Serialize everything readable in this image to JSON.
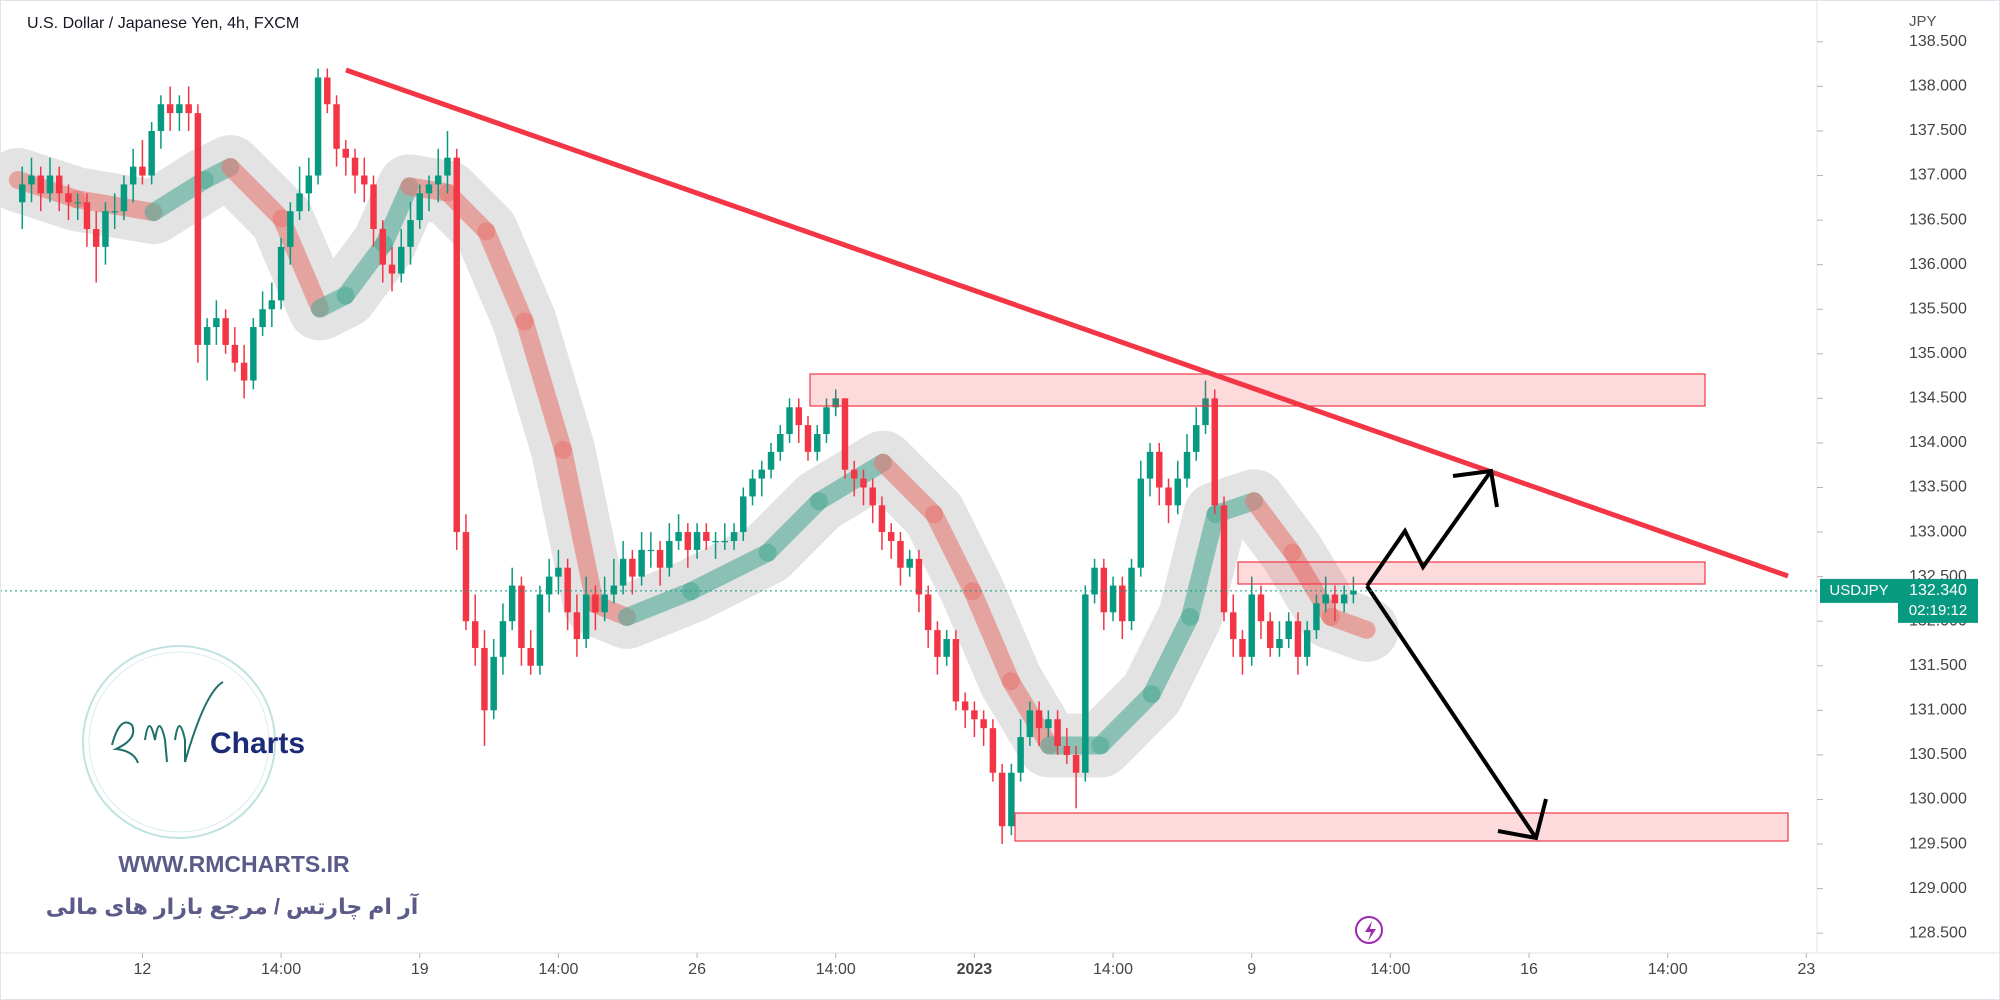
{
  "chart_data": {
    "type": "candlestick",
    "title": "U.S. Dollar / Japanese Yen, 4h, FXCM",
    "currency": "JPY",
    "symbol": "USDJPY",
    "current_price": {
      "value": 132.34,
      "label": "132.340"
    },
    "countdown": "02:19:12",
    "up_color": "#089981",
    "down_color": "#f23645",
    "candles": [
      [
        136.7,
        137.1,
        136.4,
        136.9
      ],
      [
        136.9,
        137.2,
        136.7,
        137.0
      ],
      [
        137.0,
        137.1,
        136.6,
        136.8
      ],
      [
        136.8,
        137.2,
        136.7,
        137.0
      ],
      [
        137.0,
        137.1,
        136.6,
        136.8
      ],
      [
        136.8,
        136.9,
        136.5,
        136.7
      ],
      [
        136.7,
        136.8,
        136.5,
        136.7
      ],
      [
        136.7,
        136.8,
        136.2,
        136.4
      ],
      [
        136.4,
        136.6,
        135.8,
        136.2
      ],
      [
        136.2,
        136.7,
        136.0,
        136.6
      ],
      [
        136.6,
        136.8,
        136.4,
        136.6
      ],
      [
        136.6,
        137.0,
        136.5,
        136.9
      ],
      [
        136.9,
        137.3,
        136.7,
        137.1
      ],
      [
        137.1,
        137.4,
        136.9,
        137.0
      ],
      [
        137.0,
        137.6,
        136.9,
        137.5
      ],
      [
        137.5,
        137.9,
        137.3,
        137.8
      ],
      [
        137.8,
        138.0,
        137.5,
        137.7
      ],
      [
        137.7,
        137.9,
        137.5,
        137.8
      ],
      [
        137.8,
        138.0,
        137.5,
        137.7
      ],
      [
        137.7,
        137.8,
        134.9,
        135.1
      ],
      [
        135.1,
        135.4,
        134.7,
        135.3
      ],
      [
        135.3,
        135.6,
        135.1,
        135.4
      ],
      [
        135.4,
        135.5,
        135.0,
        135.1
      ],
      [
        135.1,
        135.3,
        134.8,
        134.9
      ],
      [
        134.9,
        135.1,
        134.5,
        134.7
      ],
      [
        134.7,
        135.4,
        134.6,
        135.3
      ],
      [
        135.3,
        135.7,
        135.2,
        135.5
      ],
      [
        135.5,
        135.8,
        135.3,
        135.6
      ],
      [
        135.6,
        136.3,
        135.5,
        136.2
      ],
      [
        136.2,
        136.7,
        136.0,
        136.6
      ],
      [
        136.6,
        137.1,
        136.5,
        136.8
      ],
      [
        136.8,
        137.2,
        136.6,
        137.0
      ],
      [
        137.0,
        138.2,
        136.9,
        138.1
      ],
      [
        138.1,
        138.2,
        137.7,
        137.8
      ],
      [
        137.8,
        137.9,
        137.1,
        137.3
      ],
      [
        137.3,
        137.4,
        137.0,
        137.2
      ],
      [
        137.2,
        137.3,
        136.8,
        137.0
      ],
      [
        137.0,
        137.2,
        136.7,
        136.9
      ],
      [
        136.9,
        137.0,
        136.2,
        136.4
      ],
      [
        136.4,
        136.5,
        135.8,
        136.0
      ],
      [
        136.0,
        136.2,
        135.7,
        135.9
      ],
      [
        135.9,
        136.4,
        135.8,
        136.2
      ],
      [
        136.2,
        136.7,
        136.0,
        136.5
      ],
      [
        136.5,
        136.9,
        136.4,
        136.8
      ],
      [
        136.8,
        137.0,
        136.6,
        136.9
      ],
      [
        136.9,
        137.3,
        136.7,
        137.0
      ],
      [
        137.0,
        137.5,
        136.8,
        137.2
      ],
      [
        137.2,
        137.3,
        132.8,
        133.0
      ],
      [
        133.0,
        133.2,
        131.9,
        132.0
      ],
      [
        132.0,
        132.3,
        131.5,
        131.7
      ],
      [
        131.7,
        131.9,
        130.6,
        131.0
      ],
      [
        131.0,
        131.8,
        130.9,
        131.6
      ],
      [
        131.6,
        132.2,
        131.4,
        132.0
      ],
      [
        132.0,
        132.6,
        131.9,
        132.4
      ],
      [
        132.4,
        132.5,
        131.5,
        131.7
      ],
      [
        131.7,
        131.9,
        131.4,
        131.5
      ],
      [
        131.5,
        132.4,
        131.4,
        132.3
      ],
      [
        132.3,
        132.7,
        132.1,
        132.5
      ],
      [
        132.5,
        132.8,
        132.3,
        132.6
      ],
      [
        132.6,
        132.7,
        131.9,
        132.1
      ],
      [
        132.1,
        132.3,
        131.6,
        131.8
      ],
      [
        131.8,
        132.5,
        131.7,
        132.3
      ],
      [
        132.3,
        132.4,
        131.9,
        132.1
      ],
      [
        132.1,
        132.5,
        132.0,
        132.3
      ],
      [
        132.3,
        132.7,
        132.2,
        132.4
      ],
      [
        132.4,
        132.9,
        132.3,
        132.7
      ],
      [
        132.7,
        132.8,
        132.3,
        132.5
      ],
      [
        132.5,
        133.0,
        132.4,
        132.8
      ],
      [
        132.8,
        133.0,
        132.6,
        132.8
      ],
      [
        132.8,
        132.9,
        132.4,
        132.6
      ],
      [
        132.6,
        133.1,
        132.5,
        132.9
      ],
      [
        132.9,
        133.2,
        132.8,
        133.0
      ],
      [
        133.0,
        133.1,
        132.6,
        132.8
      ],
      [
        132.8,
        133.1,
        132.7,
        133.0
      ],
      [
        133.0,
        133.1,
        132.8,
        132.9
      ],
      [
        132.9,
        133.0,
        132.7,
        132.9
      ],
      [
        132.9,
        133.1,
        132.8,
        132.9
      ],
      [
        132.9,
        133.1,
        132.8,
        133.0
      ],
      [
        133.0,
        133.5,
        132.9,
        133.4
      ],
      [
        133.4,
        133.7,
        133.3,
        133.6
      ],
      [
        133.6,
        133.8,
        133.4,
        133.7
      ],
      [
        133.7,
        134.0,
        133.6,
        133.9
      ],
      [
        133.9,
        134.2,
        133.8,
        134.1
      ],
      [
        134.1,
        134.5,
        134.0,
        134.4
      ],
      [
        134.4,
        134.5,
        134.0,
        134.2
      ],
      [
        134.2,
        134.3,
        133.8,
        133.9
      ],
      [
        133.9,
        134.2,
        133.8,
        134.1
      ],
      [
        134.1,
        134.5,
        134.0,
        134.4
      ],
      [
        134.4,
        134.6,
        134.3,
        134.5
      ],
      [
        134.5,
        134.5,
        133.6,
        133.7
      ],
      [
        133.7,
        133.8,
        133.4,
        133.6
      ],
      [
        133.6,
        133.7,
        133.3,
        133.5
      ],
      [
        133.5,
        133.6,
        133.1,
        133.3
      ],
      [
        133.3,
        133.4,
        132.8,
        133.0
      ],
      [
        133.0,
        133.1,
        132.7,
        132.9
      ],
      [
        132.9,
        133.0,
        132.4,
        132.6
      ],
      [
        132.6,
        132.8,
        132.5,
        132.7
      ],
      [
        132.7,
        132.8,
        132.1,
        132.3
      ],
      [
        132.3,
        132.4,
        131.7,
        131.9
      ],
      [
        131.9,
        132.0,
        131.4,
        131.6
      ],
      [
        131.6,
        131.9,
        131.5,
        131.8
      ],
      [
        131.8,
        131.9,
        131.0,
        131.1
      ],
      [
        131.1,
        131.2,
        130.8,
        131.0
      ],
      [
        131.0,
        131.1,
        130.7,
        130.9
      ],
      [
        130.9,
        131.0,
        130.6,
        130.8
      ],
      [
        130.8,
        130.9,
        130.2,
        130.3
      ],
      [
        130.3,
        130.4,
        129.5,
        129.7
      ],
      [
        129.7,
        130.4,
        129.6,
        130.3
      ],
      [
        130.3,
        130.9,
        130.2,
        130.7
      ],
      [
        130.7,
        131.1,
        130.6,
        131.0
      ],
      [
        131.0,
        131.1,
        130.6,
        130.8
      ],
      [
        130.8,
        131.0,
        130.7,
        130.9
      ],
      [
        130.9,
        131.0,
        130.5,
        130.6
      ],
      [
        130.6,
        130.8,
        130.4,
        130.5
      ],
      [
        130.5,
        130.6,
        129.9,
        130.3
      ],
      [
        130.3,
        132.4,
        130.2,
        132.3
      ],
      [
        132.3,
        132.7,
        132.2,
        132.6
      ],
      [
        132.6,
        132.7,
        131.9,
        132.1
      ],
      [
        132.1,
        132.5,
        132.0,
        132.4
      ],
      [
        132.4,
        132.5,
        131.8,
        132.0
      ],
      [
        132.0,
        132.7,
        131.9,
        132.6
      ],
      [
        132.6,
        133.8,
        132.5,
        133.6
      ],
      [
        133.6,
        134.0,
        133.4,
        133.9
      ],
      [
        133.9,
        134.0,
        133.3,
        133.5
      ],
      [
        133.5,
        133.6,
        133.1,
        133.3
      ],
      [
        133.3,
        133.8,
        133.2,
        133.6
      ],
      [
        133.6,
        134.1,
        133.5,
        133.9
      ],
      [
        133.9,
        134.4,
        133.8,
        134.2
      ],
      [
        134.2,
        134.7,
        134.1,
        134.5
      ],
      [
        134.5,
        134.6,
        133.2,
        133.3
      ],
      [
        133.3,
        133.4,
        132.0,
        132.1
      ],
      [
        132.1,
        132.3,
        131.6,
        131.8
      ],
      [
        131.8,
        131.9,
        131.4,
        131.6
      ],
      [
        131.6,
        132.5,
        131.5,
        132.3
      ],
      [
        132.3,
        132.4,
        131.8,
        132.0
      ],
      [
        132.0,
        132.1,
        131.6,
        131.7
      ],
      [
        131.7,
        132.0,
        131.6,
        131.8
      ],
      [
        131.8,
        132.1,
        131.7,
        132.0
      ],
      [
        132.0,
        132.1,
        131.4,
        131.6
      ],
      [
        131.6,
        132.0,
        131.5,
        131.9
      ],
      [
        131.9,
        132.3,
        131.8,
        132.2
      ],
      [
        132.2,
        132.5,
        132.1,
        132.3
      ],
      [
        132.3,
        132.4,
        132.0,
        132.2
      ],
      [
        132.2,
        132.4,
        132.1,
        132.3
      ],
      [
        132.3,
        132.5,
        132.2,
        132.34
      ]
    ],
    "xlim": [
      -1,
      193.5
    ],
    "xticks": [
      {
        "value": 13,
        "label": "12"
      },
      {
        "value": 28,
        "label": "14:00"
      },
      {
        "value": 43,
        "label": "19"
      },
      {
        "value": 58,
        "label": "14:00"
      },
      {
        "value": 73,
        "label": "26"
      },
      {
        "value": 88,
        "label": "14:00"
      },
      {
        "value": 103,
        "label": "2023"
      },
      {
        "value": 118,
        "label": "14:00"
      },
      {
        "value": 133,
        "label": "9"
      },
      {
        "value": 148,
        "label": "14:00"
      },
      {
        "value": 163,
        "label": "16"
      },
      {
        "value": 178,
        "label": "14:00"
      },
      {
        "value": 193,
        "label": "23"
      }
    ],
    "ylim": [
      128.3,
      138.7
    ],
    "yticks": [
      {
        "value": 128.5,
        "label": "128.500"
      },
      {
        "value": 129,
        "label": "129.000"
      },
      {
        "value": 129.5,
        "label": "129.500"
      },
      {
        "value": 130,
        "label": "130.000"
      },
      {
        "value": 130.5,
        "label": "130.500"
      },
      {
        "value": 131,
        "label": "131.000"
      },
      {
        "value": 131.5,
        "label": "131.500"
      },
      {
        "value": 132,
        "label": "132.000"
      },
      {
        "value": 132.5,
        "label": "132.500"
      },
      {
        "value": 133,
        "label": "133.000"
      },
      {
        "value": 133.5,
        "label": "133.500"
      },
      {
        "value": 134,
        "label": "134.000"
      },
      {
        "value": 134.5,
        "label": "134.500"
      },
      {
        "value": 135,
        "label": "135.000"
      },
      {
        "value": 135.5,
        "label": "135.500"
      },
      {
        "value": 136,
        "label": "136.000"
      },
      {
        "value": 136.5,
        "label": "136.500"
      },
      {
        "value": 137,
        "label": "137.000"
      },
      {
        "value": 137.5,
        "label": "137.500"
      },
      {
        "value": 138,
        "label": "138.000"
      },
      {
        "value": 138.5,
        "label": "138.500"
      }
    ]
  },
  "watermark": {
    "logo_text": "Charts",
    "url": "WWW.RMCHARTS.IR",
    "tagline": "آر ام چارتس / مرجع بازار های مالی"
  }
}
